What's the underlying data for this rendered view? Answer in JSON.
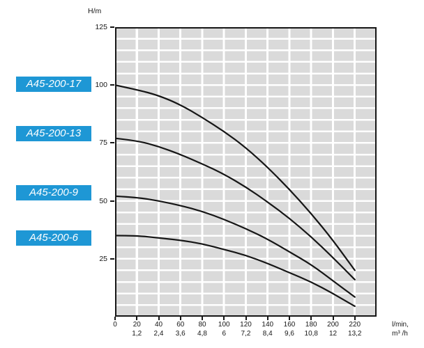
{
  "page": {
    "background": "#ffffff"
  },
  "chart_data": {
    "type": "line",
    "title": "",
    "ylabel": "H/m",
    "x_unit_labels": [
      "l/min,",
      "m³ /h"
    ],
    "xlim": [
      0,
      240
    ],
    "ylim": [
      0,
      125
    ],
    "grid": {
      "x_step": 20,
      "y_step": 5,
      "cell_color": "#dadada",
      "line_color": "#ffffff",
      "grid_on": true
    },
    "legend_position": "left",
    "y_ticks": [
      {
        "value": 125,
        "label": "125"
      },
      {
        "value": 100,
        "label": "100"
      },
      {
        "value": 75,
        "label": "75"
      },
      {
        "value": 50,
        "label": "50"
      },
      {
        "value": 25,
        "label": "25"
      }
    ],
    "x_ticks": [
      {
        "flow": 0,
        "lmin": "0",
        "m3h": ""
      },
      {
        "flow": 20,
        "lmin": "20",
        "m3h": "1,2"
      },
      {
        "flow": 40,
        "lmin": "40",
        "m3h": "2,4"
      },
      {
        "flow": 60,
        "lmin": "60",
        "m3h": "3,6"
      },
      {
        "flow": 80,
        "lmin": "80",
        "m3h": "4,8"
      },
      {
        "flow": 100,
        "lmin": "100",
        "m3h": "6"
      },
      {
        "flow": 120,
        "lmin": "120",
        "m3h": "7,2"
      },
      {
        "flow": 140,
        "lmin": "140",
        "m3h": "8,4"
      },
      {
        "flow": 160,
        "lmin": "160",
        "m3h": "9,6"
      },
      {
        "flow": 180,
        "lmin": "180",
        "m3h": "10,8"
      },
      {
        "flow": 200,
        "lmin": "200",
        "m3h": "12"
      },
      {
        "flow": 220,
        "lmin": "220",
        "m3h": "13,2"
      }
    ],
    "series": [
      {
        "label": "A45-200-17",
        "points": [
          [
            0,
            100
          ],
          [
            20,
            98
          ],
          [
            40,
            95.5
          ],
          [
            60,
            91.5
          ],
          [
            80,
            86
          ],
          [
            100,
            80
          ],
          [
            120,
            73
          ],
          [
            140,
            64.5
          ],
          [
            160,
            55
          ],
          [
            180,
            44.5
          ],
          [
            200,
            33
          ],
          [
            220,
            20
          ]
        ]
      },
      {
        "label": "A45-200-13",
        "points": [
          [
            0,
            77
          ],
          [
            20,
            76
          ],
          [
            40,
            73.5
          ],
          [
            60,
            70
          ],
          [
            80,
            66
          ],
          [
            100,
            61.5
          ],
          [
            120,
            56
          ],
          [
            140,
            49.5
          ],
          [
            160,
            42.5
          ],
          [
            180,
            34.5
          ],
          [
            200,
            25.5
          ],
          [
            220,
            16
          ]
        ]
      },
      {
        "label": "A45-200-9",
        "points": [
          [
            0,
            52
          ],
          [
            20,
            51.5
          ],
          [
            40,
            50
          ],
          [
            60,
            48
          ],
          [
            80,
            45.5
          ],
          [
            100,
            42
          ],
          [
            120,
            38
          ],
          [
            140,
            33.5
          ],
          [
            160,
            28
          ],
          [
            180,
            22.5
          ],
          [
            200,
            15.5
          ],
          [
            220,
            8.5
          ]
        ]
      },
      {
        "label": "A45-200-6",
        "points": [
          [
            0,
            35
          ],
          [
            20,
            35
          ],
          [
            40,
            34
          ],
          [
            60,
            33
          ],
          [
            80,
            31.5
          ],
          [
            100,
            29
          ],
          [
            120,
            26.5
          ],
          [
            140,
            23
          ],
          [
            160,
            19
          ],
          [
            180,
            15
          ],
          [
            200,
            10
          ],
          [
            220,
            4.5
          ]
        ]
      }
    ],
    "style": {
      "curve_color": "#161616",
      "curve_width": 2.2,
      "label_bg": "#1e97d5",
      "label_text": "#ffffff",
      "axis_color": "#161616"
    }
  }
}
